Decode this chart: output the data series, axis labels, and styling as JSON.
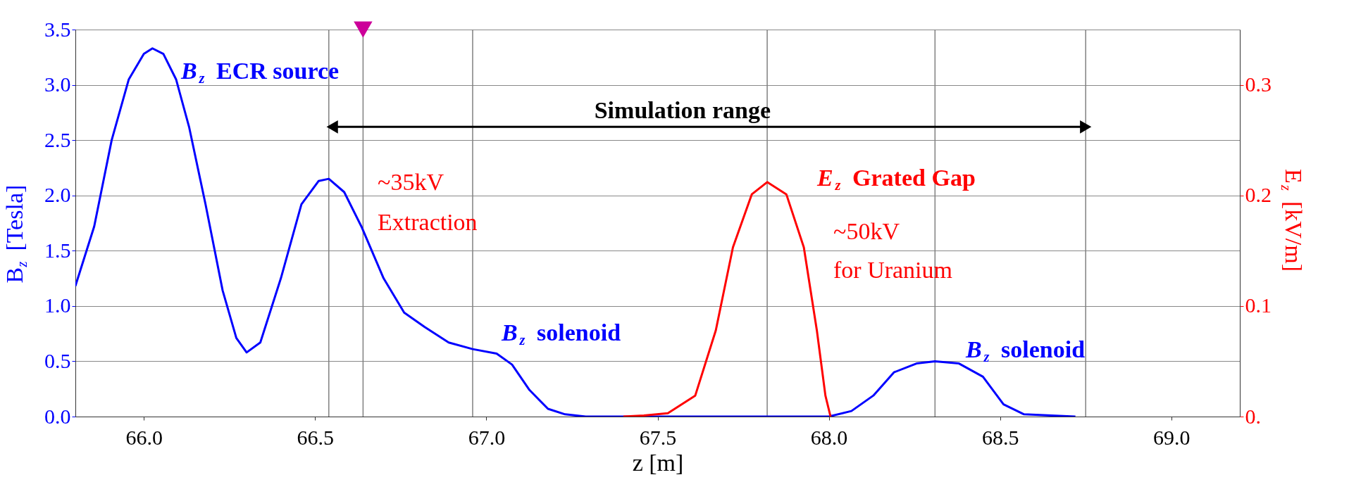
{
  "chart_data": {
    "type": "line",
    "xlabel": "z [m]",
    "ylabel": "B$_{z}$ [Tesla]",
    "y2label": "E$_{z}$ [kV/m]",
    "xlim": [
      65.8,
      69.2
    ],
    "xticks": [
      {
        "value": 66.0,
        "label": "66.0"
      },
      {
        "value": 66.5,
        "label": "66.5"
      },
      {
        "value": 67.0,
        "label": "67.0"
      },
      {
        "value": 67.5,
        "label": "67.5"
      },
      {
        "value": 68.0,
        "label": "68.0"
      },
      {
        "value": 68.5,
        "label": "68.5"
      },
      {
        "value": 69.0,
        "label": "69.0"
      }
    ],
    "ylim": [
      0,
      3.5
    ],
    "yticks": [
      {
        "value": 0,
        "label": "0.0"
      },
      {
        "value": 0.5,
        "label": "0.5"
      },
      {
        "value": 1,
        "label": "1.0"
      },
      {
        "value": 1.5,
        "label": "1.5"
      },
      {
        "value": 2,
        "label": "2.0"
      },
      {
        "value": 2.5,
        "label": "2.5"
      },
      {
        "value": 3,
        "label": "3.0"
      },
      {
        "value": 3.5,
        "label": "3.5"
      }
    ],
    "y2lim": [
      0,
      0.35
    ],
    "y2ticks": [
      {
        "value": 0,
        "label": "0."
      },
      {
        "value": 0.1,
        "label": "0.1"
      },
      {
        "value": 0.2,
        "label": "0.2"
      },
      {
        "value": 0.3,
        "label": "0.3"
      }
    ],
    "grid": "y",
    "line_style": "solid",
    "series": [
      {
        "color": "#0000ff",
        "x": [
          65.8,
          65.855,
          65.906,
          65.956,
          66.0,
          66.025,
          66.057,
          66.094,
          66.132,
          66.18,
          66.23,
          66.27,
          66.3,
          66.34,
          66.4,
          66.46,
          66.51,
          66.54,
          66.585,
          66.635,
          66.7,
          66.76,
          66.82,
          66.89,
          66.96,
          67.03,
          67.075,
          67.126,
          67.18,
          67.23,
          67.29,
          67.6,
          68.0,
          68.066,
          68.13,
          68.19,
          68.256,
          68.31,
          68.38,
          68.45,
          68.51,
          68.57,
          68.72
        ],
        "values": [
          1.18,
          1.72,
          2.5,
          3.05,
          3.28,
          3.33,
          3.28,
          3.05,
          2.62,
          1.92,
          1.14,
          0.71,
          0.58,
          0.67,
          1.25,
          1.92,
          2.13,
          2.15,
          2.03,
          1.72,
          1.25,
          0.94,
          0.81,
          0.67,
          0.61,
          0.57,
          0.47,
          0.24,
          0.07,
          0.02,
          0,
          0,
          0,
          0.05,
          0.19,
          0.4,
          0.48,
          0.5,
          0.48,
          0.36,
          0.11,
          0.02,
          0
        ]
      },
      {
        "color": "#ff0000",
        "axis": "y2",
        "x": [
          67.4,
          67.46,
          67.53,
          67.61,
          67.67,
          67.72,
          67.775,
          67.82,
          67.876,
          67.927,
          67.965,
          67.99,
          68.005
        ],
        "values": [
          0,
          0.001,
          0.003,
          0.019,
          0.078,
          0.153,
          0.201,
          0.212,
          0.201,
          0.153,
          0.078,
          0.019,
          0
        ]
      },
      {
        "color": "#000000",
        "marker": "triangle",
        "x": [
          66.55,
          68.75
        ],
        "values": [
          2.62,
          2.62
        ]
      },
      {
        "color": "#cc0099",
        "type": "scatter",
        "marker": "triangle",
        "x": [
          66.64
        ],
        "values": [
          3.5
        ]
      }
    ],
    "ref_lines": [
      {
        "axis": "x",
        "value": 66.54,
        "color": "#808080"
      },
      {
        "axis": "x",
        "value": 66.64,
        "color": "#808080"
      },
      {
        "axis": "x",
        "value": 66.96,
        "color": "#808080"
      },
      {
        "axis": "x",
        "value": 67.82,
        "color": "#808080"
      },
      {
        "axis": "x",
        "value": 68.31,
        "color": "#808080"
      },
      {
        "axis": "x",
        "value": 68.75,
        "color": "#808080"
      }
    ],
    "annotations": [
      "B$_{z}$ ECR source",
      "Simulation range",
      "~35kV",
      "Extraction",
      "B$_{z}$ solenoid",
      "E$_{z}$ Grated Gap",
      "~50kV",
      "for Uranium",
      "B$_{z}$ solenoid"
    ]
  }
}
